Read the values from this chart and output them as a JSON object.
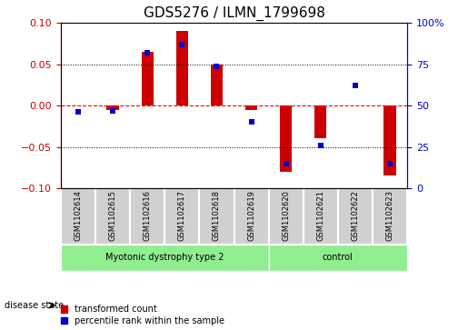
{
  "title": "GDS5276 / ILMN_1799698",
  "samples": [
    "GSM1102614",
    "GSM1102615",
    "GSM1102616",
    "GSM1102617",
    "GSM1102618",
    "GSM1102619",
    "GSM1102620",
    "GSM1102621",
    "GSM1102622",
    "GSM1102623"
  ],
  "transformed_count": [
    0.0,
    -0.005,
    0.065,
    0.09,
    0.05,
    -0.005,
    -0.08,
    -0.04,
    0.0,
    -0.085
  ],
  "percentile_rank": [
    46,
    47,
    82,
    87,
    74,
    40,
    15,
    26,
    62,
    15
  ],
  "disease_groups": [
    {
      "label": "Myotonic dystrophy type 2",
      "start": 0,
      "end": 6,
      "color": "#90EE90"
    },
    {
      "label": "control",
      "start": 6,
      "end": 10,
      "color": "#90EE90"
    }
  ],
  "group_colors": [
    "#c8c8c8",
    "#c8c8c8"
  ],
  "bar_color_red": "#cc0000",
  "bar_color_blue": "#0000cc",
  "ylim_left": [
    -0.1,
    0.1
  ],
  "ylim_right": [
    0,
    100
  ],
  "yticks_left": [
    -0.1,
    -0.05,
    0,
    0.05,
    0.1
  ],
  "yticks_right": [
    0,
    25,
    50,
    75,
    100
  ],
  "background_color": "#ffffff",
  "legend_labels": [
    "transformed count",
    "percentile rank within the sample"
  ]
}
